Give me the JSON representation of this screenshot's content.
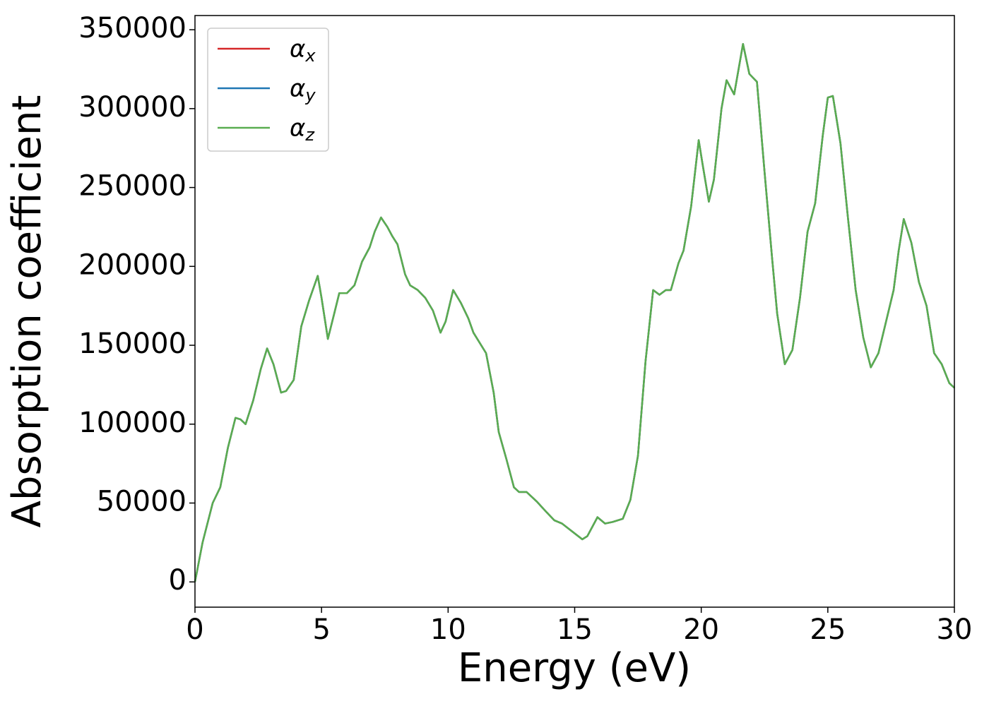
{
  "chart_data": {
    "type": "line",
    "xlabel": "Energy (eV)",
    "ylabel": "Absorption coefficient",
    "x": [
      0,
      0.3,
      0.7,
      1.0,
      1.3,
      1.6,
      1.8,
      2.0,
      2.3,
      2.6,
      2.85,
      3.1,
      3.4,
      3.6,
      3.9,
      4.2,
      4.5,
      4.85,
      5.0,
      5.25,
      5.5,
      5.7,
      6.0,
      6.3,
      6.6,
      6.9,
      7.1,
      7.35,
      7.6,
      7.8,
      8.0,
      8.3,
      8.5,
      8.8,
      9.1,
      9.4,
      9.7,
      9.9,
      10.2,
      10.5,
      10.8,
      11.0,
      11.5,
      11.8,
      12.0,
      12.3,
      12.6,
      12.8,
      13.1,
      13.5,
      13.9,
      14.2,
      14.5,
      14.9,
      15.3,
      15.5,
      15.9,
      16.2,
      16.5,
      16.9,
      17.2,
      17.5,
      17.8,
      18.1,
      18.35,
      18.6,
      18.8,
      19.1,
      19.3,
      19.6,
      19.9,
      20.05,
      20.3,
      20.5,
      20.8,
      21.0,
      21.3,
      21.65,
      21.9,
      22.2,
      22.5,
      22.8,
      23.0,
      23.3,
      23.6,
      23.9,
      24.2,
      24.5,
      24.8,
      25.0,
      25.2,
      25.5,
      25.8,
      26.1,
      26.4,
      26.7,
      27.0,
      27.3,
      27.6,
      27.8,
      28.0,
      28.3,
      28.6,
      28.9,
      29.2,
      29.5,
      29.8,
      30.0
    ],
    "series": [
      {
        "name": "αx",
        "color": "#d62728",
        "values": [
          0,
          25000,
          50000,
          60000,
          85000,
          104000,
          103000,
          100000,
          115000,
          135000,
          148000,
          138000,
          120000,
          121000,
          128000,
          162000,
          178000,
          194000,
          180000,
          154000,
          170000,
          183000,
          183000,
          188000,
          203000,
          212000,
          222000,
          231000,
          225000,
          219000,
          214000,
          195000,
          188000,
          185000,
          180000,
          172000,
          158000,
          165000,
          185000,
          177000,
          167000,
          158000,
          145000,
          120000,
          95000,
          78000,
          60000,
          57000,
          57000,
          51000,
          44000,
          39000,
          37000,
          32000,
          27000,
          29000,
          41000,
          37000,
          38000,
          40000,
          52000,
          80000,
          140000,
          185000,
          182000,
          185000,
          185000,
          202000,
          210000,
          238000,
          280000,
          265000,
          241000,
          255000,
          300000,
          318000,
          309000,
          341000,
          322000,
          317000,
          260000,
          205000,
          170000,
          138000,
          147000,
          180000,
          222000,
          240000,
          283000,
          307000,
          308000,
          278000,
          230000,
          185000,
          155000,
          136000,
          145000,
          165000,
          185000,
          210000,
          230000,
          215000,
          190000,
          175000,
          145000,
          138000,
          126000,
          123000
        ]
      },
      {
        "name": "αy",
        "color": "#1f77b4",
        "values": [
          0,
          25000,
          50000,
          60000,
          85000,
          104000,
          103000,
          100000,
          115000,
          135000,
          148000,
          138000,
          120000,
          121000,
          128000,
          162000,
          178000,
          194000,
          180000,
          154000,
          170000,
          183000,
          183000,
          188000,
          203000,
          212000,
          222000,
          231000,
          225000,
          219000,
          214000,
          195000,
          188000,
          185000,
          180000,
          172000,
          158000,
          165000,
          185000,
          177000,
          167000,
          158000,
          145000,
          120000,
          95000,
          78000,
          60000,
          57000,
          57000,
          51000,
          44000,
          39000,
          37000,
          32000,
          27000,
          29000,
          41000,
          37000,
          38000,
          40000,
          52000,
          80000,
          140000,
          185000,
          182000,
          185000,
          185000,
          202000,
          210000,
          238000,
          280000,
          265000,
          241000,
          255000,
          300000,
          318000,
          309000,
          341000,
          322000,
          317000,
          260000,
          205000,
          170000,
          138000,
          147000,
          180000,
          222000,
          240000,
          283000,
          307000,
          308000,
          278000,
          230000,
          185000,
          155000,
          136000,
          145000,
          165000,
          185000,
          210000,
          230000,
          215000,
          190000,
          175000,
          145000,
          138000,
          126000,
          123000
        ]
      },
      {
        "name": "αz",
        "color": "#5aad50",
        "values": [
          0,
          25000,
          50000,
          60000,
          85000,
          104000,
          103000,
          100000,
          115000,
          135000,
          148000,
          138000,
          120000,
          121000,
          128000,
          162000,
          178000,
          194000,
          180000,
          154000,
          170000,
          183000,
          183000,
          188000,
          203000,
          212000,
          222000,
          231000,
          225000,
          219000,
          214000,
          195000,
          188000,
          185000,
          180000,
          172000,
          158000,
          165000,
          185000,
          177000,
          167000,
          158000,
          145000,
          120000,
          95000,
          78000,
          60000,
          57000,
          57000,
          51000,
          44000,
          39000,
          37000,
          32000,
          27000,
          29000,
          41000,
          37000,
          38000,
          40000,
          52000,
          80000,
          140000,
          185000,
          182000,
          185000,
          185000,
          202000,
          210000,
          238000,
          280000,
          265000,
          241000,
          255000,
          300000,
          318000,
          309000,
          341000,
          322000,
          317000,
          260000,
          205000,
          170000,
          138000,
          147000,
          180000,
          222000,
          240000,
          283000,
          307000,
          308000,
          278000,
          230000,
          185000,
          155000,
          136000,
          145000,
          165000,
          185000,
          210000,
          230000,
          215000,
          190000,
          175000,
          145000,
          138000,
          126000,
          123000
        ]
      }
    ],
    "xlim": [
      0,
      30
    ],
    "xticks": [
      0,
      5,
      10,
      15,
      20,
      25,
      30
    ],
    "ylim": [
      -16000,
      359000
    ],
    "yticks": [
      0,
      50000,
      100000,
      150000,
      200000,
      250000,
      300000,
      350000
    ],
    "grid": false,
    "legend": "upper left"
  }
}
